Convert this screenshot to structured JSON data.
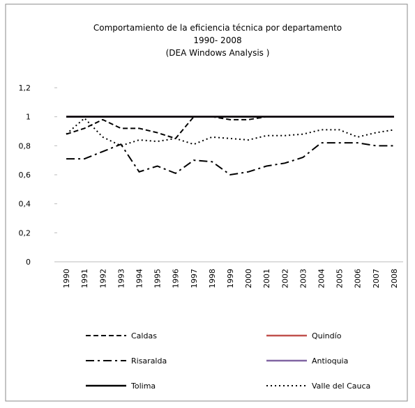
{
  "chart_data": {
    "type": "line",
    "title_lines": [
      "Comportamiento de la eficiencia técnica por departamento",
      "1990- 2008",
      "(DEA Windows Analysis )"
    ],
    "categories": [
      "1990",
      "1991",
      "1992",
      "1993",
      "1994",
      "1995",
      "1996",
      "1997",
      "1998",
      "1999",
      "2000",
      "2001",
      "2002",
      "2003",
      "2004",
      "2005",
      "2006",
      "2007",
      "2008"
    ],
    "ylim": [
      0,
      1.2
    ],
    "yticks": [
      0,
      {
        "value": 0.2,
        "label": "0,2"
      },
      {
        "value": 0.4,
        "label": "0,4"
      },
      {
        "value": 0.6,
        "label": "0,6"
      },
      {
        "value": 0.8,
        "label": "0,8"
      },
      1,
      {
        "value": 1.2,
        "label": "1,2"
      }
    ],
    "grid": false,
    "series": [
      {
        "name": "Caldas",
        "color": "#000000",
        "dash": "dashed",
        "values": [
          0.88,
          0.92,
          0.98,
          0.92,
          0.92,
          0.89,
          0.85,
          1,
          1,
          0.98,
          0.98,
          1,
          1,
          1,
          1,
          1,
          1,
          1,
          1
        ]
      },
      {
        "name": "Quindío",
        "color": "#c0504d",
        "dash": "solid",
        "values": [
          1,
          1,
          1,
          1,
          1,
          1,
          1,
          1,
          1,
          1,
          1,
          1,
          1,
          1,
          1,
          1,
          1,
          1,
          1
        ]
      },
      {
        "name": "Risaralda",
        "color": "#000000",
        "dash": "dashdot",
        "values": [
          0.71,
          0.71,
          0.76,
          0.81,
          0.62,
          0.66,
          0.61,
          0.7,
          0.69,
          0.6,
          0.62,
          0.66,
          0.68,
          0.72,
          0.82,
          0.82,
          0.82,
          0.8,
          0.8
        ]
      },
      {
        "name": "Antioquia",
        "color": "#8064a2",
        "dash": "solid",
        "values": [
          1,
          1,
          1,
          1,
          1,
          1,
          1,
          1,
          1,
          1,
          1,
          1,
          1,
          1,
          1,
          1,
          1,
          1,
          1
        ]
      },
      {
        "name": "Tolima",
        "color": "#000000",
        "dash": "solid",
        "values": [
          1,
          1,
          1,
          1,
          1,
          1,
          1,
          1,
          1,
          1,
          1,
          1,
          1,
          1,
          1,
          1,
          1,
          1,
          1
        ]
      },
      {
        "name": "Valle del Cauca",
        "color": "#000000",
        "dash": "dotted",
        "values": [
          0.88,
          0.99,
          0.86,
          0.8,
          0.84,
          0.83,
          0.85,
          0.81,
          0.86,
          0.85,
          0.84,
          0.87,
          0.87,
          0.88,
          0.91,
          0.91,
          0.86,
          0.89,
          0.91
        ]
      }
    ]
  }
}
